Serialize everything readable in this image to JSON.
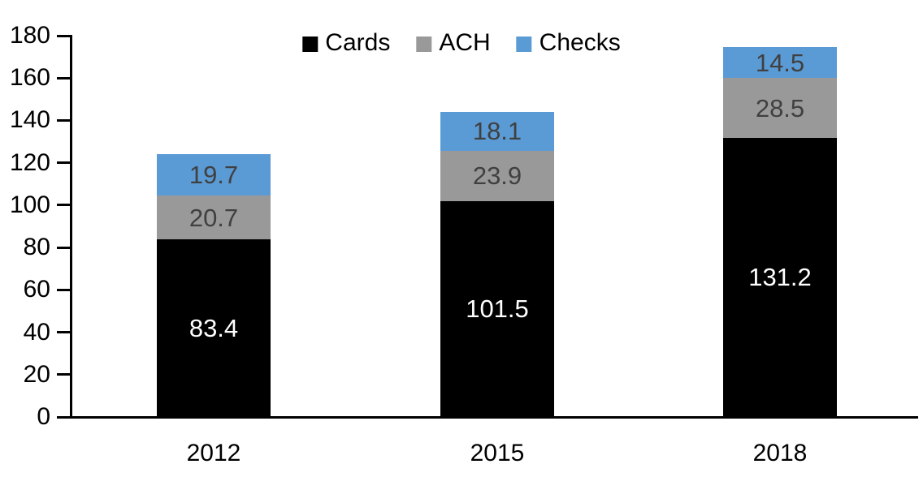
{
  "chart_data": {
    "type": "bar",
    "stacked": true,
    "title": "",
    "xlabel": "",
    "ylabel": "",
    "categories": [
      "2012",
      "2015",
      "2018"
    ],
    "series": [
      {
        "name": "Cards",
        "color": "#000000",
        "label_color": "#ffffff",
        "values": [
          83.4,
          101.5,
          131.2
        ]
      },
      {
        "name": "ACH",
        "color": "#999999",
        "label_color": "#404040",
        "values": [
          20.7,
          23.9,
          28.5
        ]
      },
      {
        "name": "Checks",
        "color": "#5B9BD5",
        "label_color": "#404040",
        "values": [
          19.7,
          18.1,
          14.5
        ]
      }
    ],
    "ylim": [
      0,
      180
    ],
    "yticks": [
      0,
      20,
      40,
      60,
      80,
      100,
      120,
      140,
      160,
      180
    ],
    "grid": false,
    "legend_position": "top-center",
    "axis_color": "#000000",
    "background_color": "#ffffff"
  }
}
